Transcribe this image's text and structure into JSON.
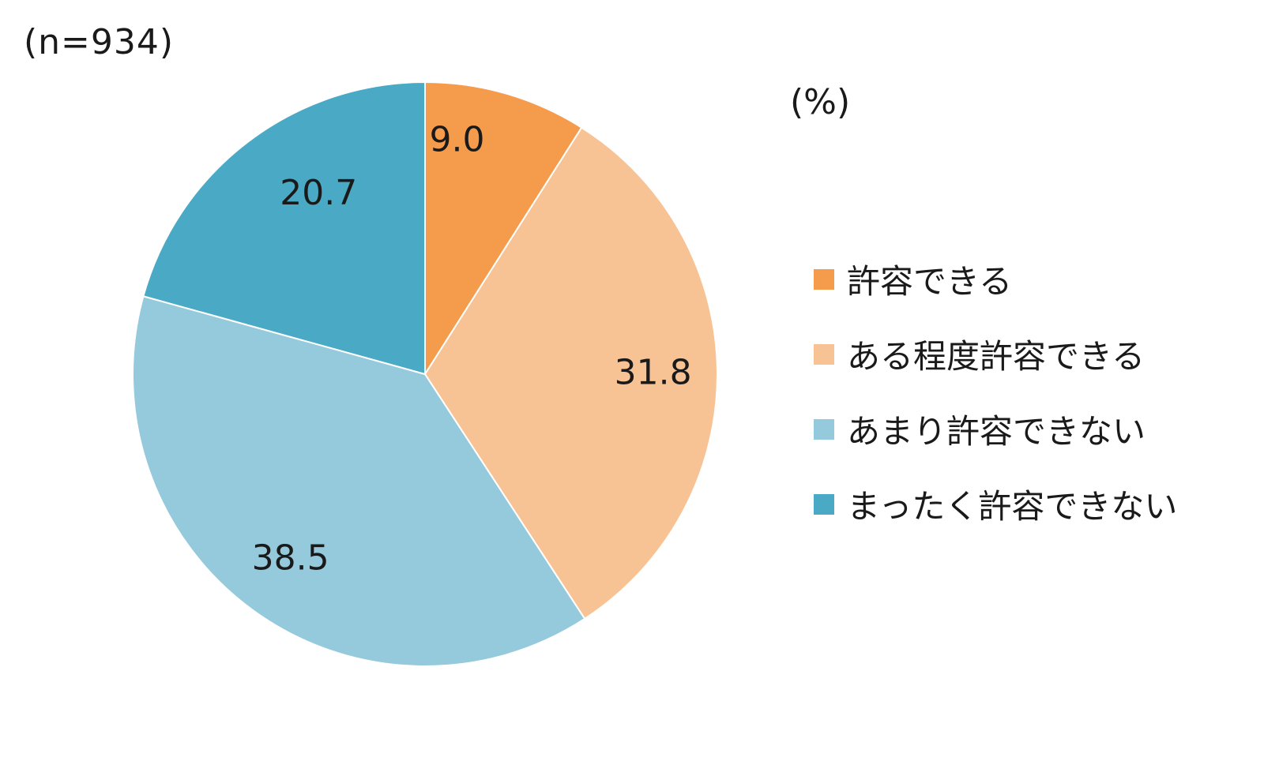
{
  "chart_data": {
    "type": "pie",
    "sample_note": "(n=934)",
    "unit_note": "(%)",
    "categories": [
      "許容できる",
      "ある程度許容できる",
      "あまり許容できない",
      "まったく許容できない"
    ],
    "values": [
      9.0,
      31.8,
      38.5,
      20.7
    ],
    "value_labels": [
      "9.0",
      "31.8",
      "38.5",
      "20.7"
    ],
    "colors": [
      "#f59b4c",
      "#f8c394",
      "#95c9dc",
      "#4aa9c4"
    ],
    "legend_position": "right",
    "start_angle": "12 o'clock",
    "direction": "clockwise"
  }
}
